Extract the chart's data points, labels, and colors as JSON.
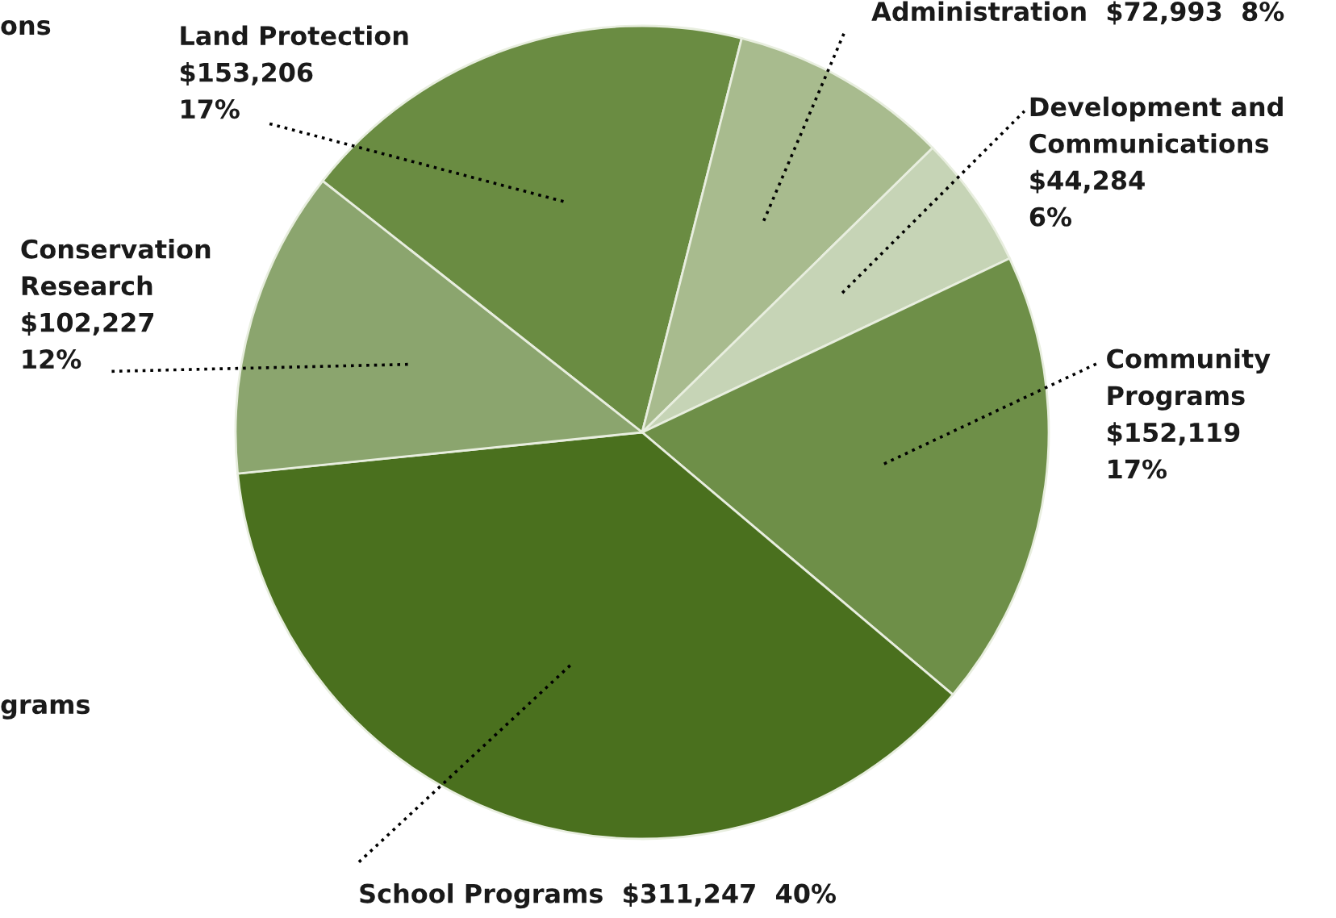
{
  "chart_data": {
    "type": "pie",
    "categories": [
      "Land Protection",
      "Administration",
      "Development and Communications",
      "Community Programs",
      "School Programs",
      "Conservation Research"
    ],
    "values": [
      153206,
      72993,
      44284,
      152119,
      311247,
      102227
    ],
    "value_labels": [
      "$153,206\n17%",
      "$72,993  8%",
      "$44,284\n6%",
      "$152,119\n17%",
      "$311,247  40%",
      "$102,227\n12%"
    ],
    "colors": [
      "#6a8c42",
      "#a8bb8e",
      "#c6d4b6",
      "#6e8f48",
      "#4a701e",
      "#8ba56e"
    ],
    "annotations": [
      "ons",
      "grams"
    ]
  }
}
